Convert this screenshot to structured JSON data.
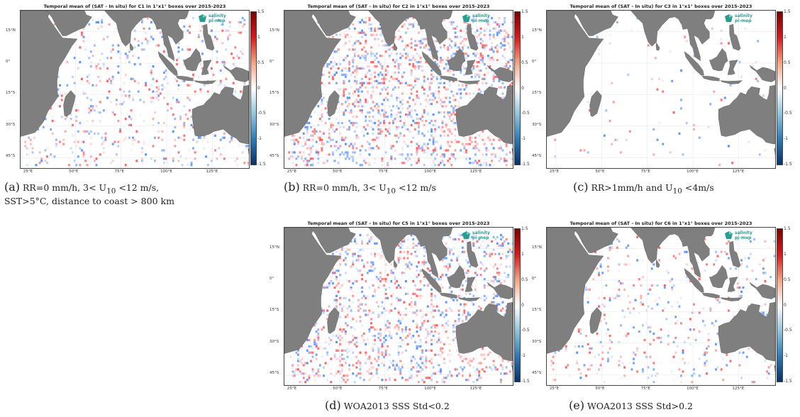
{
  "panels": [
    {
      "id": "a",
      "title": "Temporal mean of (SAT - In situ) for C1 in 1°x1° boxes over 2015-2023",
      "caption_tag": "(a)",
      "caption_line1": "RR=0  mm/h,  3<  U",
      "caption_sub": "10",
      "caption_line1b": "  <12  m/s,",
      "caption_line2": "SST>5°C, distance to coast > 800 km",
      "density": 0.09,
      "seed": 11
    },
    {
      "id": "b",
      "title": "Temporal mean of (SAT - In situ) for C2 in 1°x1° boxes over 2015-2023",
      "caption_tag": "(b)",
      "caption_line1": "RR=0 mm/h, 3< U",
      "caption_sub": "10",
      "caption_line1b": " <12 m/s",
      "caption_line2": "",
      "density": 0.22,
      "seed": 23
    },
    {
      "id": "c",
      "title": "Temporal mean of (SAT - In situ) for C3 in 1°x1° boxes over 2015-2023",
      "caption_tag": "(c)",
      "caption_line1": "RR>1mm/h and U",
      "caption_sub": "10",
      "caption_line1b": " <4m/s",
      "caption_line2": "",
      "density": 0.015,
      "seed": 37
    },
    {
      "id": "d",
      "title": "Temporal mean of (SAT - In situ) for C5 in 1°x1° boxes over 2015-2023",
      "caption_tag": "(d)",
      "caption_line1": "WOA2013 SSS Std<0.2",
      "caption_sub": "",
      "caption_line1b": "",
      "caption_line2": "",
      "density": 0.2,
      "seed": 51
    },
    {
      "id": "e",
      "title": "Temporal mean of (SAT - In situ) for C6 in 1°x1° boxes over 2015-2023",
      "caption_tag": "(e)",
      "caption_line1": "WOA2013 SSS Std>0.2",
      "caption_sub": "",
      "caption_line1b": "",
      "caption_line2": "",
      "density": 0.06,
      "seed": 67
    }
  ],
  "lat_labels": [
    "15°N",
    "0°",
    "15°S",
    "30°S",
    "45°S"
  ],
  "lon_labels": [
    "25°E",
    "50°E",
    "75°E",
    "100°E",
    "125°E"
  ],
  "colorbar_ticks": [
    "1.5",
    "1",
    "0.5",
    "0",
    "-0.5",
    "-1",
    "-1.5"
  ],
  "colorbar_ticks_d": [
    "1.5",
    "1",
    "0.5",
    "0",
    "-0.5",
    "-1",
    "-1.5"
  ],
  "logo": {
    "line1": "salinity",
    "line2": "pi-mep"
  },
  "colors": {
    "land": "#7f7f7f",
    "positive": "#d7191c",
    "negative": "#2c7bb6",
    "neutral": "#ffffff"
  }
}
